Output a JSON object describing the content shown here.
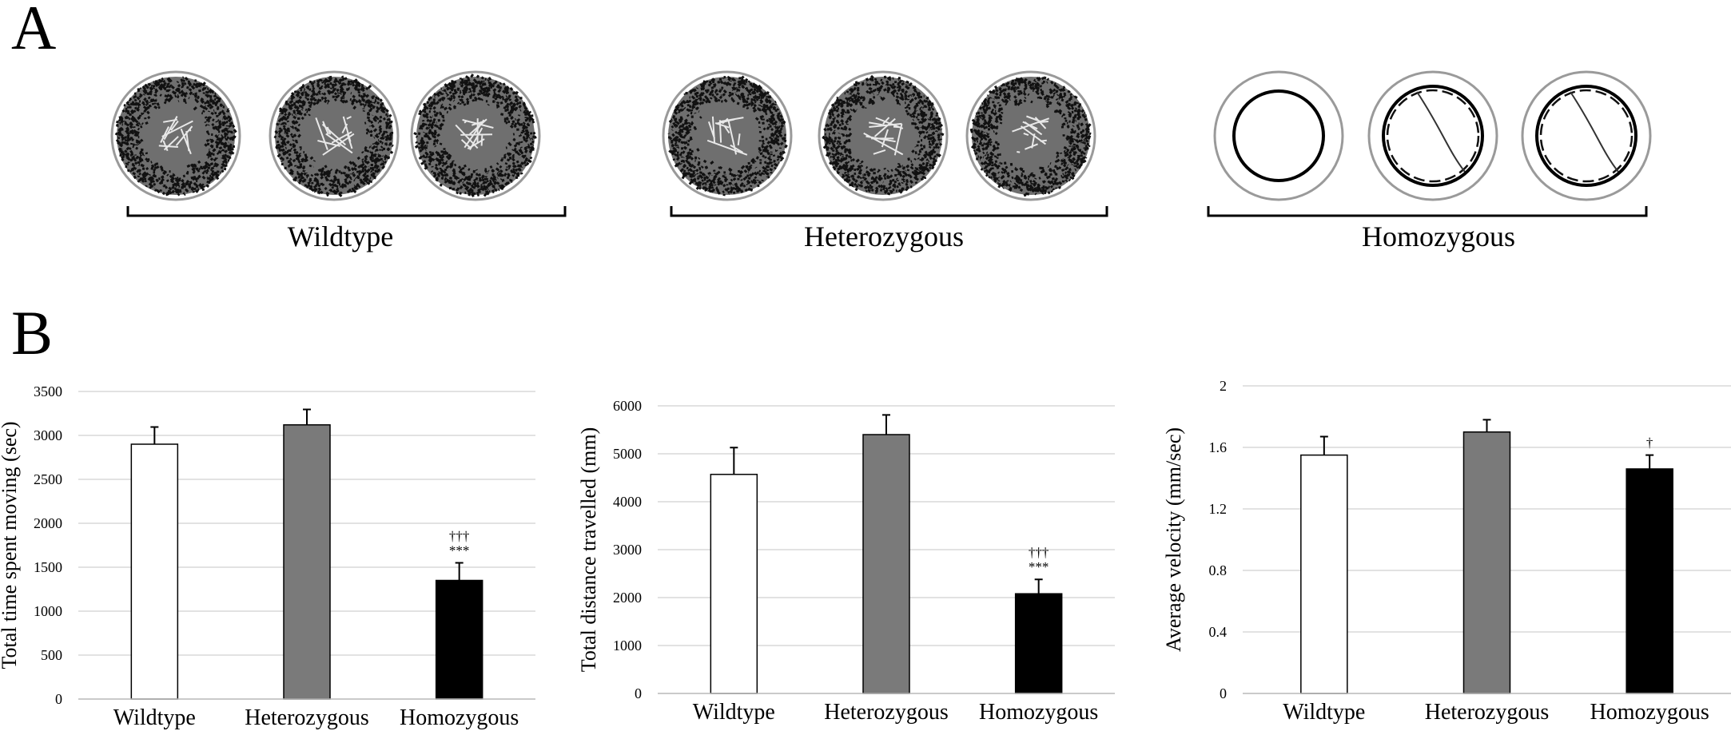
{
  "panels": {
    "a_letter": "A",
    "b_letter": "B"
  },
  "track_groups": [
    {
      "label": "Wildtype",
      "style": "dense"
    },
    {
      "label": "Heterozygous",
      "style": "dense"
    },
    {
      "label": "Homozygous",
      "style": "ring"
    }
  ],
  "colors": {
    "wildtype": "#ffffff",
    "heterozygous": "#7a7a7a",
    "homozygous": "#000000",
    "grid": "#d9d9d9"
  },
  "chart_data": [
    {
      "type": "bar",
      "categories": [
        "Wildtype",
        "Heterozygous",
        "Homozygous"
      ],
      "values": [
        2900,
        3120,
        1350
      ],
      "errors": [
        195,
        175,
        200
      ],
      "annotations": [
        "",
        "",
        "†††\n***"
      ],
      "ylabel": "Total time spent moving (sec)",
      "ylim": [
        0,
        3500
      ],
      "yticks": [
        0,
        500,
        1000,
        1500,
        2000,
        2500,
        3000,
        3500
      ],
      "grid": true
    },
    {
      "type": "bar",
      "categories": [
        "Wildtype",
        "Heterozygous",
        "Homozygous"
      ],
      "values": [
        4570,
        5400,
        2080
      ],
      "errors": [
        560,
        410,
        300
      ],
      "annotations": [
        "",
        "",
        "†††\n***"
      ],
      "ylabel": "Total distance travelled (mm)",
      "ylim": [
        0,
        6000
      ],
      "yticks": [
        0,
        1000,
        2000,
        3000,
        4000,
        5000,
        6000
      ],
      "grid": true
    },
    {
      "type": "bar",
      "categories": [
        "Wildtype",
        "Heterozygous",
        "Homozygous"
      ],
      "values": [
        1.55,
        1.7,
        1.46
      ],
      "errors": [
        0.12,
        0.08,
        0.09
      ],
      "annotations": [
        "",
        "",
        "†"
      ],
      "ylabel": "Average velocity (mm/sec)",
      "ylim": [
        0,
        2
      ],
      "yticks": [
        0,
        0.4,
        0.8,
        1.2,
        1.6,
        2
      ],
      "grid": true
    }
  ]
}
